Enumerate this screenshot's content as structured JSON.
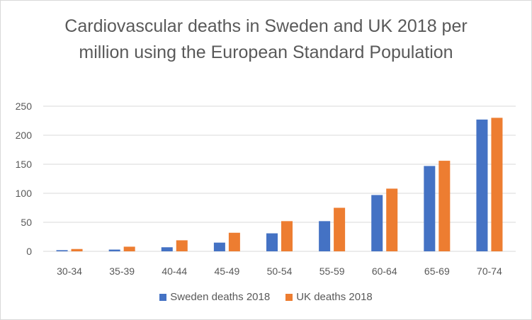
{
  "chart_data": {
    "type": "bar",
    "title": "Cardiovascular deaths in Sweden and UK 2018 per million using the European Standard Population",
    "categories": [
      "30-34",
      "35-39",
      "40-44",
      "45-49",
      "50-54",
      "55-59",
      "60-64",
      "65-69",
      "70-74"
    ],
    "series": [
      {
        "name": "Sweden deaths 2018",
        "color": "#4472c4",
        "values": [
          2,
          3,
          7,
          15,
          31,
          52,
          97,
          147,
          227
        ]
      },
      {
        "name": "UK deaths 2018",
        "color": "#ed7d31",
        "values": [
          4,
          8,
          19,
          32,
          52,
          75,
          108,
          156,
          230
        ]
      }
    ],
    "ylim": [
      0,
      250
    ],
    "yticks": [
      0,
      50,
      100,
      150,
      200,
      250
    ],
    "grid": true,
    "legend_position": "bottom"
  }
}
